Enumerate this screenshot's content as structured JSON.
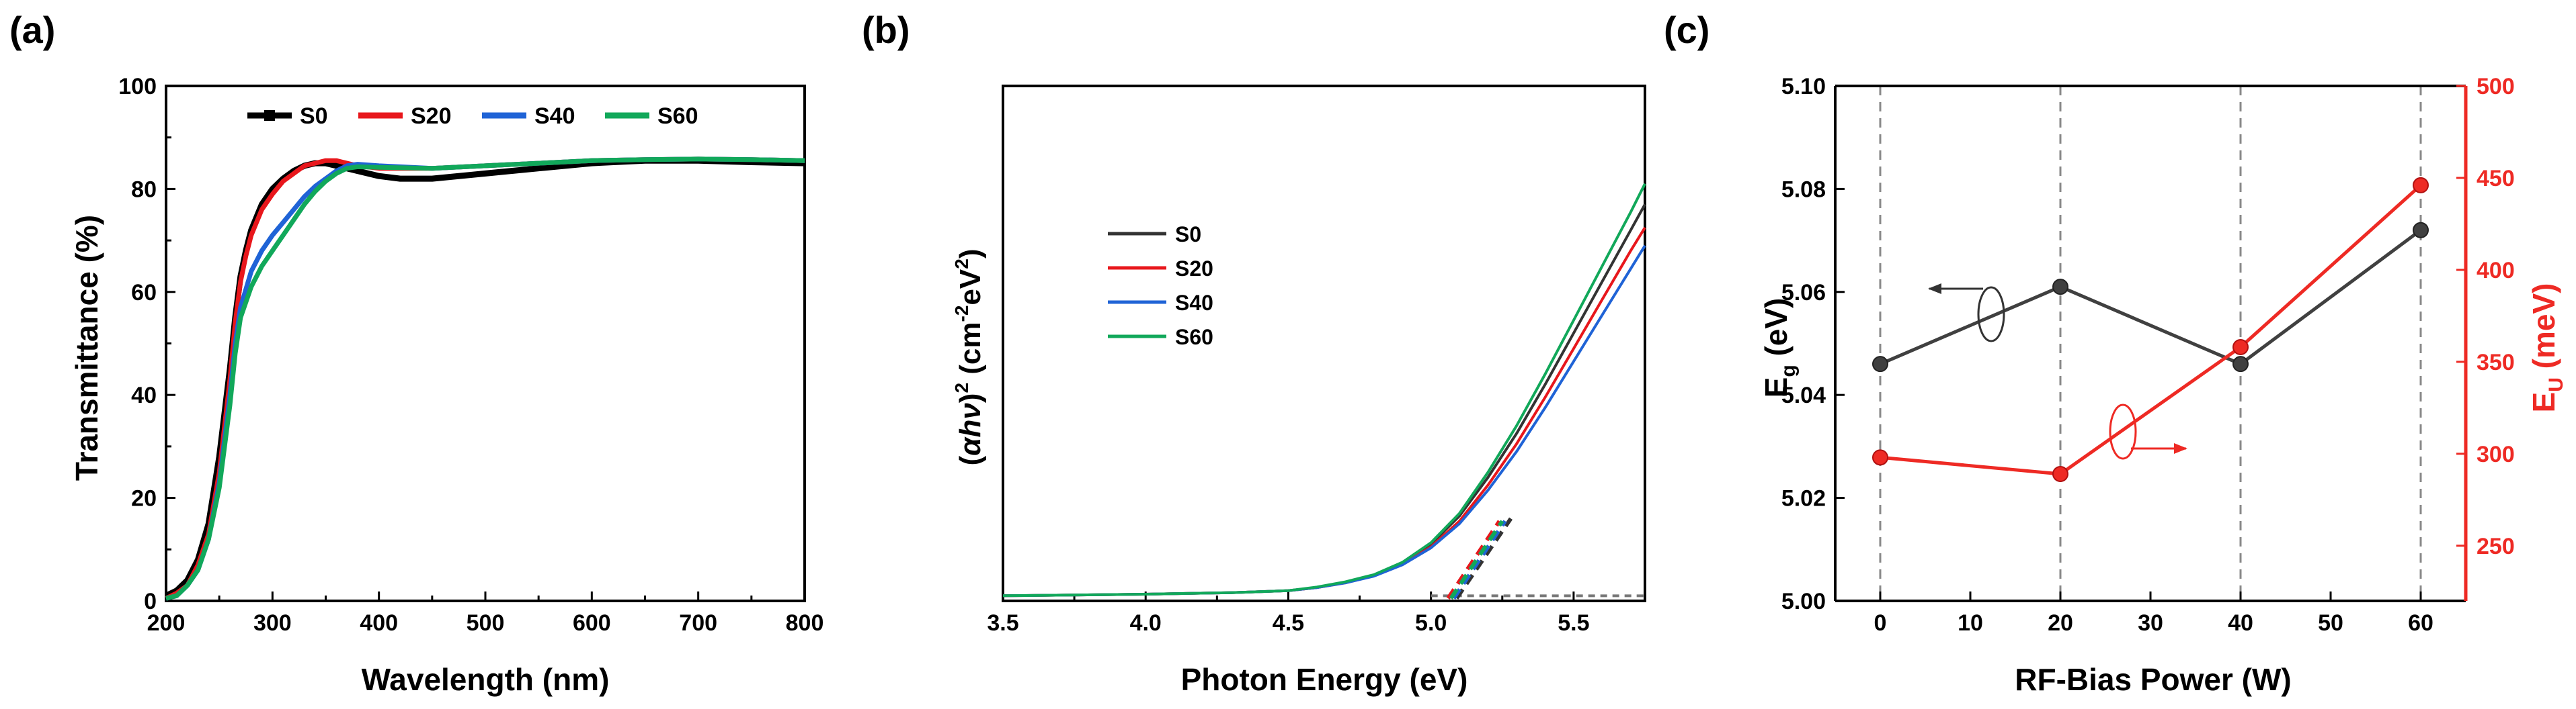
{
  "chart_data": [
    {
      "panel": "(a)",
      "type": "line",
      "xlabel": "Wavelength (nm)",
      "ylabel": "Transmittance (%)",
      "xlim": [
        200,
        800
      ],
      "ylim": [
        0,
        100
      ],
      "xticks": [
        "200",
        "300",
        "400",
        "500",
        "600",
        "700",
        "800"
      ],
      "yticks": [
        "0",
        "20",
        "40",
        "60",
        "80",
        "100"
      ],
      "legend": "top",
      "series": [
        {
          "name": "S0",
          "color": "#000000",
          "x": [
            200,
            210,
            220,
            230,
            240,
            250,
            260,
            265,
            270,
            275,
            280,
            290,
            300,
            310,
            320,
            330,
            340,
            350,
            360,
            380,
            400,
            420,
            450,
            500,
            550,
            600,
            650,
            700,
            750,
            800
          ],
          "y": [
            1,
            2,
            4,
            8,
            15,
            28,
            45,
            55,
            63,
            68,
            72,
            77,
            80,
            82,
            83.5,
            84.5,
            85,
            85,
            84.5,
            83.5,
            82.5,
            82,
            82,
            83,
            84,
            85,
            85.5,
            85.5,
            85.2,
            85
          ]
        },
        {
          "name": "S20",
          "color": "#e8171c",
          "x": [
            200,
            210,
            220,
            230,
            240,
            250,
            260,
            265,
            270,
            275,
            280,
            290,
            300,
            310,
            320,
            330,
            340,
            350,
            360,
            380,
            400,
            450,
            500,
            550,
            600,
            650,
            700,
            750,
            800
          ],
          "y": [
            0.5,
            1.5,
            3,
            7,
            13,
            25,
            43,
            54,
            62,
            67,
            71,
            76,
            79,
            81.5,
            83,
            84.5,
            85,
            85.5,
            85.5,
            84.5,
            84,
            84,
            84.5,
            85,
            85.5,
            85.7,
            85.8,
            85.7,
            85.5
          ]
        },
        {
          "name": "S40",
          "color": "#1f63d6",
          "x": [
            200,
            210,
            220,
            230,
            240,
            250,
            260,
            265,
            270,
            280,
            290,
            300,
            310,
            320,
            330,
            340,
            350,
            360,
            370,
            380,
            400,
            450,
            500,
            550,
            600,
            650,
            700,
            750,
            800
          ],
          "y": [
            0.5,
            1,
            3,
            6,
            12,
            23,
            40,
            50,
            57,
            64,
            68,
            71,
            73.5,
            76,
            78.5,
            80.5,
            82,
            83.5,
            84.5,
            84.8,
            84.5,
            84,
            84.5,
            85,
            85.5,
            85.7,
            85.8,
            85.7,
            85.5
          ]
        },
        {
          "name": "S60",
          "color": "#11a85a",
          "x": [
            200,
            210,
            220,
            230,
            240,
            250,
            260,
            265,
            270,
            280,
            290,
            300,
            310,
            320,
            330,
            340,
            350,
            360,
            370,
            380,
            400,
            450,
            500,
            550,
            600,
            650,
            700,
            750,
            800
          ],
          "y": [
            0.5,
            1,
            3,
            6,
            12,
            22,
            38,
            48,
            55,
            61,
            65,
            68,
            71,
            74,
            77,
            79.5,
            81.5,
            83,
            84,
            84.3,
            84.2,
            84,
            84.5,
            85,
            85.5,
            85.7,
            85.8,
            85.7,
            85.5
          ]
        }
      ]
    },
    {
      "panel": "(b)",
      "type": "line",
      "xlabel": "Photon Energy (eV)",
      "ylabel_parts": [
        "(",
        "αhν",
        ")",
        "2",
        " (cm",
        "-2",
        "eV",
        "2",
        ")"
      ],
      "xlim": [
        3.5,
        5.75
      ],
      "ylim": [
        0,
        100
      ],
      "xticks": [
        "3.5",
        "4.0",
        "4.5",
        "5.0",
        "5.5"
      ],
      "legend": "upper-left",
      "series": [
        {
          "name": "S0",
          "color": "#333333",
          "x": [
            3.5,
            4.0,
            4.3,
            4.5,
            4.6,
            4.7,
            4.8,
            4.9,
            5.0,
            5.1,
            5.2,
            5.3,
            5.4,
            5.5,
            5.6,
            5.7,
            5.75
          ],
          "y": [
            1,
            1.3,
            1.6,
            2,
            2.6,
            3.6,
            5,
            7.3,
            11,
            16.5,
            24,
            32.5,
            42,
            52,
            62,
            72,
            77
          ]
        },
        {
          "name": "S20",
          "color": "#e8171c",
          "x": [
            3.5,
            4.0,
            4.3,
            4.5,
            4.6,
            4.7,
            4.8,
            4.9,
            5.0,
            5.1,
            5.2,
            5.3,
            5.4,
            5.5,
            5.6,
            5.7,
            5.75
          ],
          "y": [
            1,
            1.3,
            1.6,
            2,
            2.6,
            3.5,
            4.9,
            7.1,
            10.5,
            15.5,
            22.5,
            30.5,
            39.5,
            49,
            58.5,
            68,
            72.5
          ]
        },
        {
          "name": "S40",
          "color": "#1f63d6",
          "x": [
            3.5,
            4.0,
            4.3,
            4.5,
            4.6,
            4.7,
            4.8,
            4.9,
            5.0,
            5.1,
            5.2,
            5.3,
            5.4,
            5.5,
            5.6,
            5.7,
            5.75
          ],
          "y": [
            1,
            1.3,
            1.6,
            2,
            2.6,
            3.5,
            4.8,
            7,
            10.3,
            15,
            21.5,
            29,
            37.5,
            46.5,
            55.5,
            64.5,
            69
          ]
        },
        {
          "name": "S60",
          "color": "#11a85a",
          "x": [
            3.5,
            4.0,
            4.3,
            4.5,
            4.6,
            4.7,
            4.8,
            4.9,
            5.0,
            5.1,
            5.2,
            5.3,
            5.4,
            5.5,
            5.6,
            5.7,
            5.75
          ],
          "y": [
            1,
            1.3,
            1.6,
            2,
            2.7,
            3.7,
            5.1,
            7.5,
            11.3,
            17,
            25,
            34,
            44,
            54.5,
            65,
            75.5,
            81
          ]
        }
      ],
      "baseline": {
        "x": [
          5.0,
          5.75
        ],
        "y": [
          1,
          1
        ]
      },
      "tangents": [
        {
          "color": "#333333",
          "x": [
            5.09,
            5.28
          ],
          "y": [
            0.5,
            16
          ]
        },
        {
          "color": "#e8171c",
          "x": [
            5.06,
            5.24
          ],
          "y": [
            0.5,
            15.5
          ]
        },
        {
          "color": "#1f63d6",
          "x": [
            5.08,
            5.26
          ],
          "y": [
            0.5,
            15.5
          ]
        },
        {
          "color": "#11a85a",
          "x": [
            5.07,
            5.25
          ],
          "y": [
            0.5,
            15.5
          ]
        }
      ]
    },
    {
      "panel": "(c)",
      "type": "line",
      "xlabel": "RF-Bias Power (W)",
      "ylabel_left": [
        "E",
        "g",
        " (eV)"
      ],
      "ylabel_right": [
        "E",
        "U",
        " (meV)"
      ],
      "xlim": [
        -5,
        65
      ],
      "ylim_left": [
        5.0,
        5.1
      ],
      "ylim_right": [
        220,
        500
      ],
      "xticks": [
        "0",
        "10",
        "20",
        "30",
        "40",
        "50",
        "60"
      ],
      "yticks_left": [
        "5.00",
        "5.02",
        "5.04",
        "5.06",
        "5.08",
        "5.10"
      ],
      "yticks_right": [
        "250",
        "300",
        "350",
        "400",
        "450",
        "500"
      ],
      "vlines": [
        0,
        20,
        40,
        60
      ],
      "series": [
        {
          "name": "Eg",
          "axis": "left",
          "color": "#404040",
          "x": [
            0,
            20,
            40,
            60
          ],
          "y": [
            5.046,
            5.061,
            5.046,
            5.072
          ]
        },
        {
          "name": "EU",
          "axis": "right",
          "color": "#ee2a24",
          "x": [
            0,
            20,
            40,
            60
          ],
          "y": [
            298,
            289,
            358,
            446
          ]
        }
      ]
    }
  ],
  "panel_labels": [
    "(a)",
    "(b)",
    "(c)"
  ]
}
